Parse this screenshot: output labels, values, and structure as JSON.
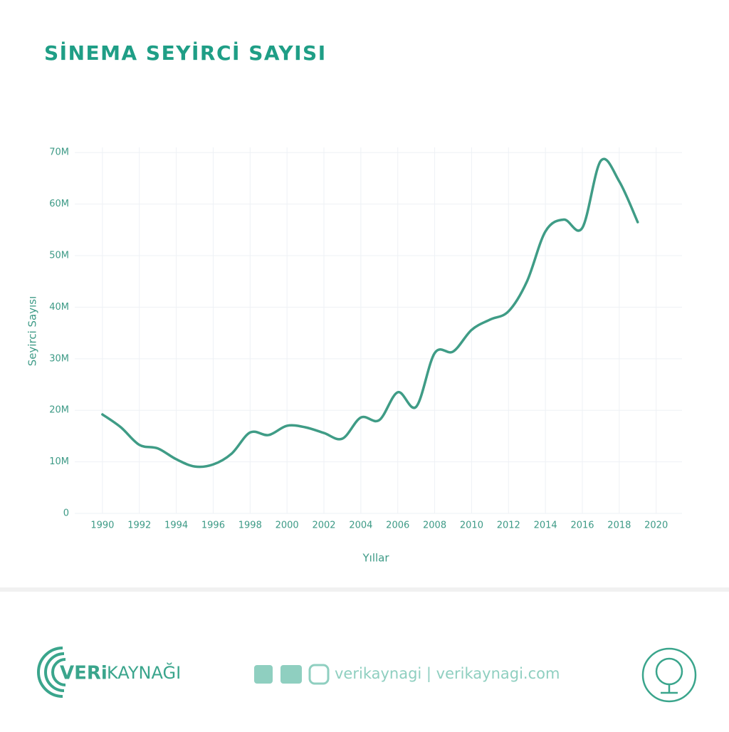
{
  "chart_data": {
    "type": "line",
    "title": "SİNEMA SEYİRCİ SAYISI",
    "x_label": "Yıllar",
    "y_label": "Seyirci Sayısı",
    "x": [
      1990,
      1991,
      1992,
      1993,
      1994,
      1995,
      1996,
      1997,
      1998,
      1999,
      2000,
      2001,
      2002,
      2003,
      2004,
      2005,
      2006,
      2007,
      2008,
      2009,
      2010,
      2011,
      2012,
      2013,
      2014,
      2015,
      2016,
      2017,
      2018,
      2019
    ],
    "series": [
      {
        "name": "Seyirci Sayısı",
        "color": "#3f9c86",
        "values": [
          19200000,
          16700000,
          13300000,
          12600000,
          10500000,
          9100000,
          9500000,
          11600000,
          15700000,
          15200000,
          17000000,
          16700000,
          15600000,
          14500000,
          18600000,
          18100000,
          23500000,
          20700000,
          31100000,
          31400000,
          35600000,
          37600000,
          39200000,
          45000000,
          54700000,
          57000000,
          55400000,
          68400000,
          64400000,
          56500000
        ]
      }
    ],
    "xlim": [
      1988.5,
      2021.4
    ],
    "xticks": [
      1990,
      1992,
      1994,
      1996,
      1998,
      2000,
      2002,
      2004,
      2006,
      2008,
      2010,
      2012,
      2014,
      2016,
      2018,
      2020
    ],
    "ylim": [
      0,
      71000000
    ],
    "yticks": [
      0,
      {
        "value": 10000000,
        "label": "10M"
      },
      {
        "value": 20000000,
        "label": "20M"
      },
      {
        "value": 30000000,
        "label": "30M"
      },
      {
        "value": 40000000,
        "label": "40M"
      },
      {
        "value": 50000000,
        "label": "50M"
      },
      {
        "value": 60000000,
        "label": "60M"
      },
      {
        "value": 70000000,
        "label": "70M"
      }
    ],
    "grid": true
  },
  "footer": {
    "brand_bold": "VERi",
    "brand_rest": "KAYNAĞI",
    "social": "verikaynagi | verikaynagi.com"
  }
}
